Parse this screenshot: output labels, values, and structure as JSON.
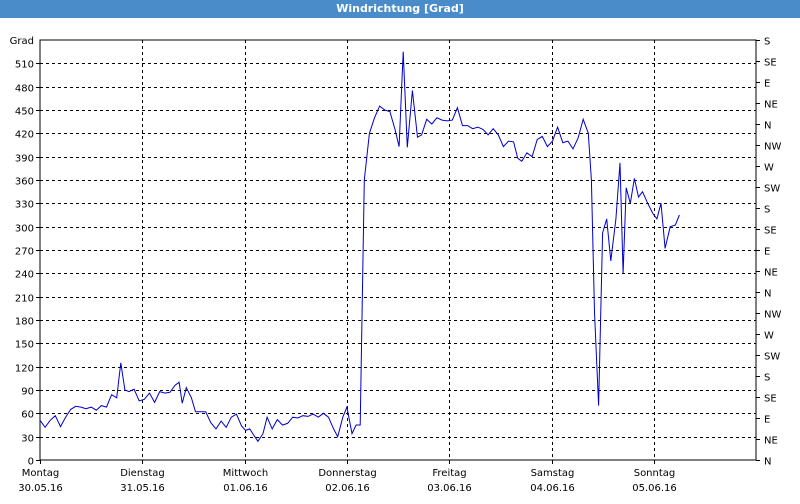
{
  "window": {
    "title": "Windrichtung [Grad]"
  },
  "chart_data": {
    "type": "line",
    "title": "Windrichtung [Grad]",
    "ylabel": "Grad",
    "ylim": [
      0,
      540
    ],
    "xlim": [
      0,
      7
    ],
    "grid": true,
    "line_color": "#0000cc",
    "y_ticks": [
      0,
      30,
      60,
      90,
      120,
      150,
      180,
      210,
      240,
      270,
      300,
      330,
      360,
      390,
      420,
      450,
      480,
      510
    ],
    "right_ticks": [
      {
        "v": 0,
        "label": "N"
      },
      {
        "v": 30,
        "label": "NE"
      },
      {
        "v": 60,
        "label": "E"
      },
      {
        "v": 90,
        "label": "SE"
      },
      {
        "v": 120,
        "label": "S"
      },
      {
        "v": 150,
        "label": "SW"
      },
      {
        "v": 180,
        "label": "W"
      },
      {
        "v": 210,
        "label": "NW"
      },
      {
        "v": 240,
        "label": "N"
      },
      {
        "v": 270,
        "label": "NE"
      },
      {
        "v": 300,
        "label": "E"
      },
      {
        "v": 330,
        "label": "SE"
      },
      {
        "v": 360,
        "label": "S"
      },
      {
        "v": 390,
        "label": "SW"
      },
      {
        "v": 420,
        "label": "W"
      },
      {
        "v": 450,
        "label": "NW"
      },
      {
        "v": 480,
        "label": "N"
      },
      {
        "v": 510,
        "label": "NE"
      },
      {
        "v": 540,
        "label": "E"
      },
      {
        "v": 570,
        "label": "SE"
      },
      {
        "v": 600,
        "label": "S"
      }
    ],
    "x_ticks": [
      {
        "v": 0,
        "day": "Montag",
        "date": "30.05.16"
      },
      {
        "v": 1,
        "day": "Dienstag",
        "date": "31.05.16"
      },
      {
        "v": 2,
        "day": "Mittwoch",
        "date": "01.06.16"
      },
      {
        "v": 3,
        "day": "Donnerstag",
        "date": "02.06.16"
      },
      {
        "v": 4,
        "day": "Freitag",
        "date": "03.06.16"
      },
      {
        "v": 5,
        "day": "Samstag",
        "date": "04.06.16"
      },
      {
        "v": 6,
        "day": "Sonntag",
        "date": "05.06.16"
      }
    ],
    "series": [
      {
        "values": [
          [
            0.0,
            51
          ],
          [
            0.05,
            42
          ],
          [
            0.1,
            51
          ],
          [
            0.15,
            57
          ],
          [
            0.2,
            43
          ],
          [
            0.25,
            55
          ],
          [
            0.3,
            65
          ],
          [
            0.35,
            69
          ],
          [
            0.4,
            68
          ],
          [
            0.45,
            66
          ],
          [
            0.5,
            68
          ],
          [
            0.55,
            64
          ],
          [
            0.6,
            70
          ],
          [
            0.65,
            68
          ],
          [
            0.7,
            84
          ],
          [
            0.75,
            80
          ],
          [
            0.79,
            125
          ],
          [
            0.83,
            90
          ],
          [
            0.87,
            88
          ],
          [
            0.92,
            91
          ],
          [
            0.97,
            76
          ],
          [
            1.02,
            78
          ],
          [
            1.07,
            86
          ],
          [
            1.12,
            74
          ],
          [
            1.17,
            88
          ],
          [
            1.22,
            86
          ],
          [
            1.27,
            87
          ],
          [
            1.32,
            96
          ],
          [
            1.36,
            100
          ],
          [
            1.39,
            73
          ],
          [
            1.43,
            93
          ],
          [
            1.48,
            80
          ],
          [
            1.52,
            62
          ],
          [
            1.57,
            62
          ],
          [
            1.62,
            62
          ],
          [
            1.67,
            48
          ],
          [
            1.72,
            40
          ],
          [
            1.77,
            50
          ],
          [
            1.82,
            42
          ],
          [
            1.87,
            55
          ],
          [
            1.92,
            59
          ],
          [
            1.97,
            44
          ],
          [
            2.01,
            38
          ],
          [
            2.05,
            40
          ],
          [
            2.1,
            30
          ],
          [
            2.13,
            24
          ],
          [
            2.18,
            34
          ],
          [
            2.22,
            55
          ],
          [
            2.27,
            40
          ],
          [
            2.32,
            52
          ],
          [
            2.37,
            45
          ],
          [
            2.42,
            47
          ],
          [
            2.47,
            55
          ],
          [
            2.52,
            54
          ],
          [
            2.57,
            57
          ],
          [
            2.62,
            56
          ],
          [
            2.67,
            59
          ],
          [
            2.72,
            55
          ],
          [
            2.77,
            60
          ],
          [
            2.82,
            55
          ],
          [
            2.87,
            40
          ],
          [
            2.91,
            30
          ],
          [
            2.96,
            55
          ],
          [
            3.0,
            68
          ],
          [
            3.05,
            34
          ],
          [
            3.09,
            45
          ],
          [
            3.13,
            45
          ],
          [
            3.17,
            360
          ],
          [
            3.22,
            420
          ],
          [
            3.27,
            440
          ],
          [
            3.32,
            455
          ],
          [
            3.37,
            450
          ],
          [
            3.42,
            448
          ],
          [
            3.47,
            425
          ],
          [
            3.51,
            403
          ],
          [
            3.55,
            525
          ],
          [
            3.59,
            402
          ],
          [
            3.64,
            475
          ],
          [
            3.69,
            415
          ],
          [
            3.73,
            418
          ],
          [
            3.78,
            438
          ],
          [
            3.83,
            432
          ],
          [
            3.88,
            440
          ],
          [
            3.93,
            437
          ],
          [
            3.98,
            436
          ],
          [
            4.03,
            437
          ],
          [
            4.08,
            453
          ],
          [
            4.13,
            430
          ],
          [
            4.18,
            430
          ],
          [
            4.23,
            426
          ],
          [
            4.28,
            428
          ],
          [
            4.33,
            425
          ],
          [
            4.38,
            418
          ],
          [
            4.43,
            426
          ],
          [
            4.48,
            418
          ],
          [
            4.53,
            403
          ],
          [
            4.58,
            410
          ],
          [
            4.63,
            409
          ],
          [
            4.67,
            388
          ],
          [
            4.71,
            384
          ],
          [
            4.76,
            395
          ],
          [
            4.81,
            390
          ],
          [
            4.86,
            412
          ],
          [
            4.91,
            416
          ],
          [
            4.96,
            403
          ],
          [
            5.01,
            410
          ],
          [
            5.06,
            428
          ],
          [
            5.11,
            408
          ],
          [
            5.16,
            410
          ],
          [
            5.21,
            400
          ],
          [
            5.26,
            414
          ],
          [
            5.31,
            438
          ],
          [
            5.36,
            420
          ],
          [
            5.39,
            360
          ],
          [
            5.42,
            190
          ],
          [
            5.46,
            70
          ],
          [
            5.5,
            292
          ],
          [
            5.54,
            310
          ],
          [
            5.58,
            256
          ],
          [
            5.63,
            310
          ],
          [
            5.67,
            382
          ],
          [
            5.7,
            240
          ],
          [
            5.73,
            350
          ],
          [
            5.77,
            330
          ],
          [
            5.81,
            362
          ],
          [
            5.85,
            338
          ],
          [
            5.89,
            345
          ],
          [
            5.94,
            330
          ],
          [
            5.99,
            317
          ],
          [
            6.03,
            310
          ],
          [
            6.07,
            330
          ],
          [
            6.11,
            272
          ],
          [
            6.16,
            300
          ],
          [
            6.21,
            302
          ],
          [
            6.25,
            315
          ]
        ]
      }
    ]
  }
}
